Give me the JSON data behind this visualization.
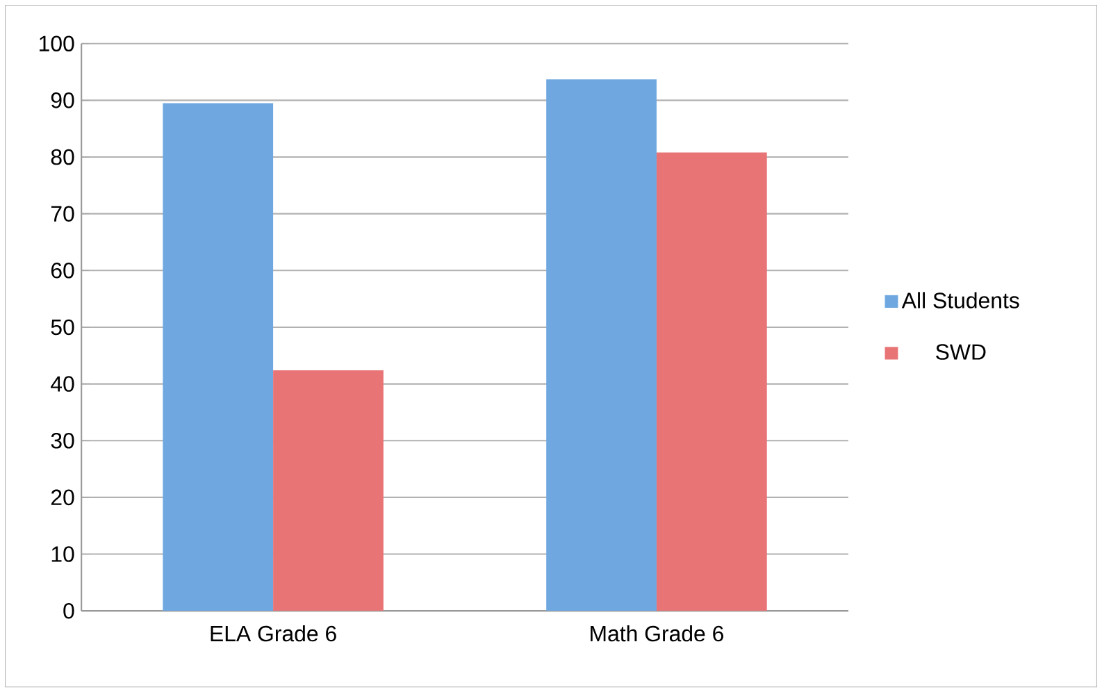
{
  "chart_data": {
    "type": "bar",
    "categories": [
      "ELA Grade 6",
      "Math Grade 6"
    ],
    "series": [
      {
        "name": "All Students",
        "color": "#6fa8e0",
        "values": [
          89.5,
          93.7
        ]
      },
      {
        "name": "SWD",
        "color": "#e87476",
        "values": [
          42.4,
          80.8
        ]
      }
    ],
    "ylim": [
      0,
      100
    ],
    "yticks": [
      0,
      10,
      20,
      30,
      40,
      50,
      60,
      70,
      80,
      90,
      100
    ],
    "grid": "y",
    "legend": "right"
  }
}
